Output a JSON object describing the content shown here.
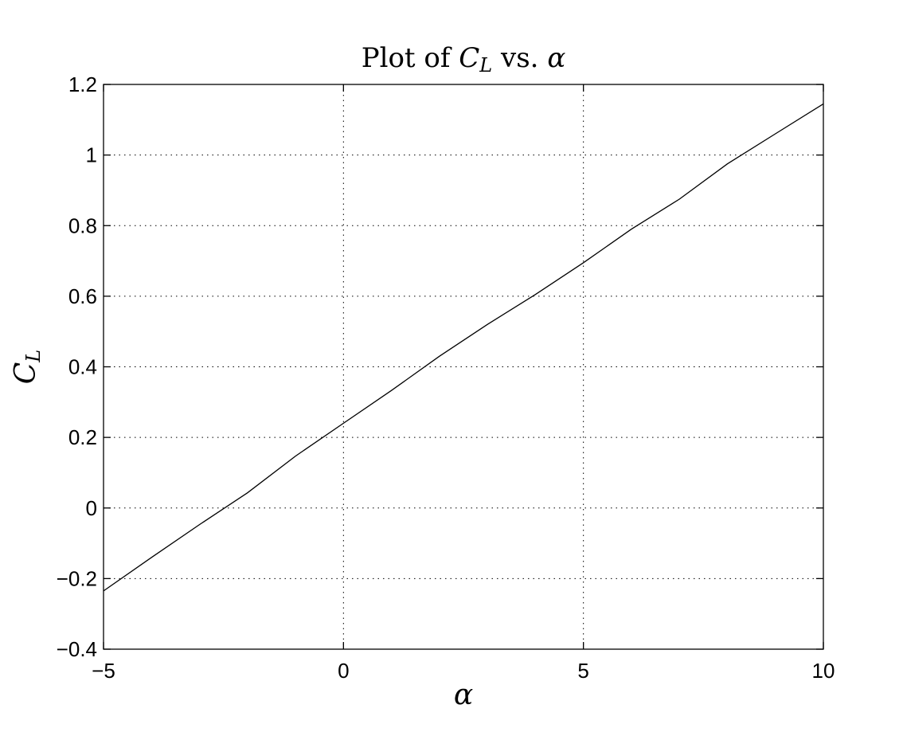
{
  "chart_data": {
    "type": "line",
    "title": {
      "prefix": "Plot of ",
      "var_main": "C",
      "var_sub": "L",
      "middle": " vs. ",
      "var2": "α"
    },
    "xlabel": "α",
    "ylabel": {
      "main": "C",
      "sub": "L"
    },
    "xlim": [
      -5,
      10
    ],
    "ylim": [
      -0.4,
      1.2
    ],
    "xticks": [
      -5,
      0,
      5,
      10
    ],
    "yticks": [
      -0.4,
      -0.2,
      0,
      0.2,
      0.4,
      0.6,
      0.8,
      1,
      1.2
    ],
    "xtick_labels": [
      "−5",
      "0",
      "5",
      "10"
    ],
    "ytick_labels": [
      "−0.4",
      "−0.2",
      "0",
      "0.2",
      "0.4",
      "0.6",
      "0.8",
      "1",
      "1.2"
    ],
    "grid": true,
    "grid_style": "dotted",
    "line_color": "#000000",
    "series": [
      {
        "x": [
          -5,
          -4,
          -3,
          -2,
          -1,
          0,
          1,
          2,
          3,
          4,
          5,
          6,
          7,
          8,
          9,
          10
        ],
        "y": [
          -0.235,
          -0.14,
          -0.047,
          0.043,
          0.147,
          0.24,
          0.333,
          0.43,
          0.52,
          0.605,
          0.695,
          0.79,
          0.875,
          0.975,
          1.06,
          1.145
        ]
      }
    ]
  }
}
